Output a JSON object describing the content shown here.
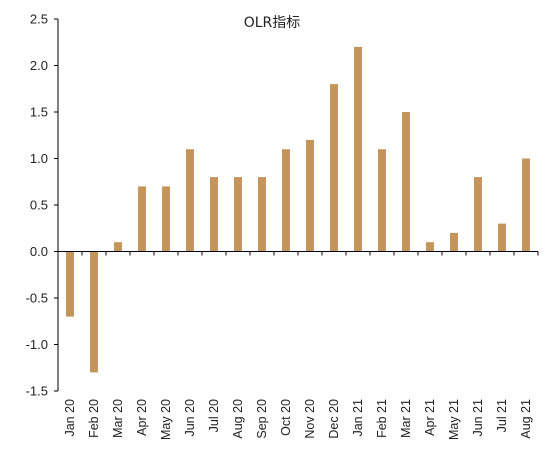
{
  "chart_data": {
    "type": "bar",
    "title": "OLR指标",
    "xlabel": "",
    "ylabel": "",
    "ylim": [
      -1.5,
      2.5
    ],
    "yticks": [
      "2.5",
      "2.0",
      "1.5",
      "1.0",
      "0.5",
      "0.0",
      "-0.5",
      "-1.0",
      "-1.5"
    ],
    "categories": [
      "Jan 20",
      "Feb 20",
      "Mar 20",
      "Apr 20",
      "May 20",
      "Jun 20",
      "Jul 20",
      "Aug 20",
      "Sep 20",
      "Oct 20",
      "Nov 20",
      "Dec 20",
      "Jan 21",
      "Feb 21",
      "Mar 21",
      "Apr 21",
      "May 21",
      "Jun 21",
      "Jul 21",
      "Aug 21"
    ],
    "values": [
      -0.7,
      -1.3,
      0.1,
      0.7,
      0.7,
      1.1,
      0.8,
      0.8,
      0.8,
      1.1,
      1.2,
      1.8,
      2.2,
      1.1,
      1.5,
      0.1,
      0.2,
      0.8,
      0.3,
      1.0
    ],
    "bar_color": "#C4955A",
    "axis_color": "#000000",
    "grid": false,
    "legend": "none"
  }
}
